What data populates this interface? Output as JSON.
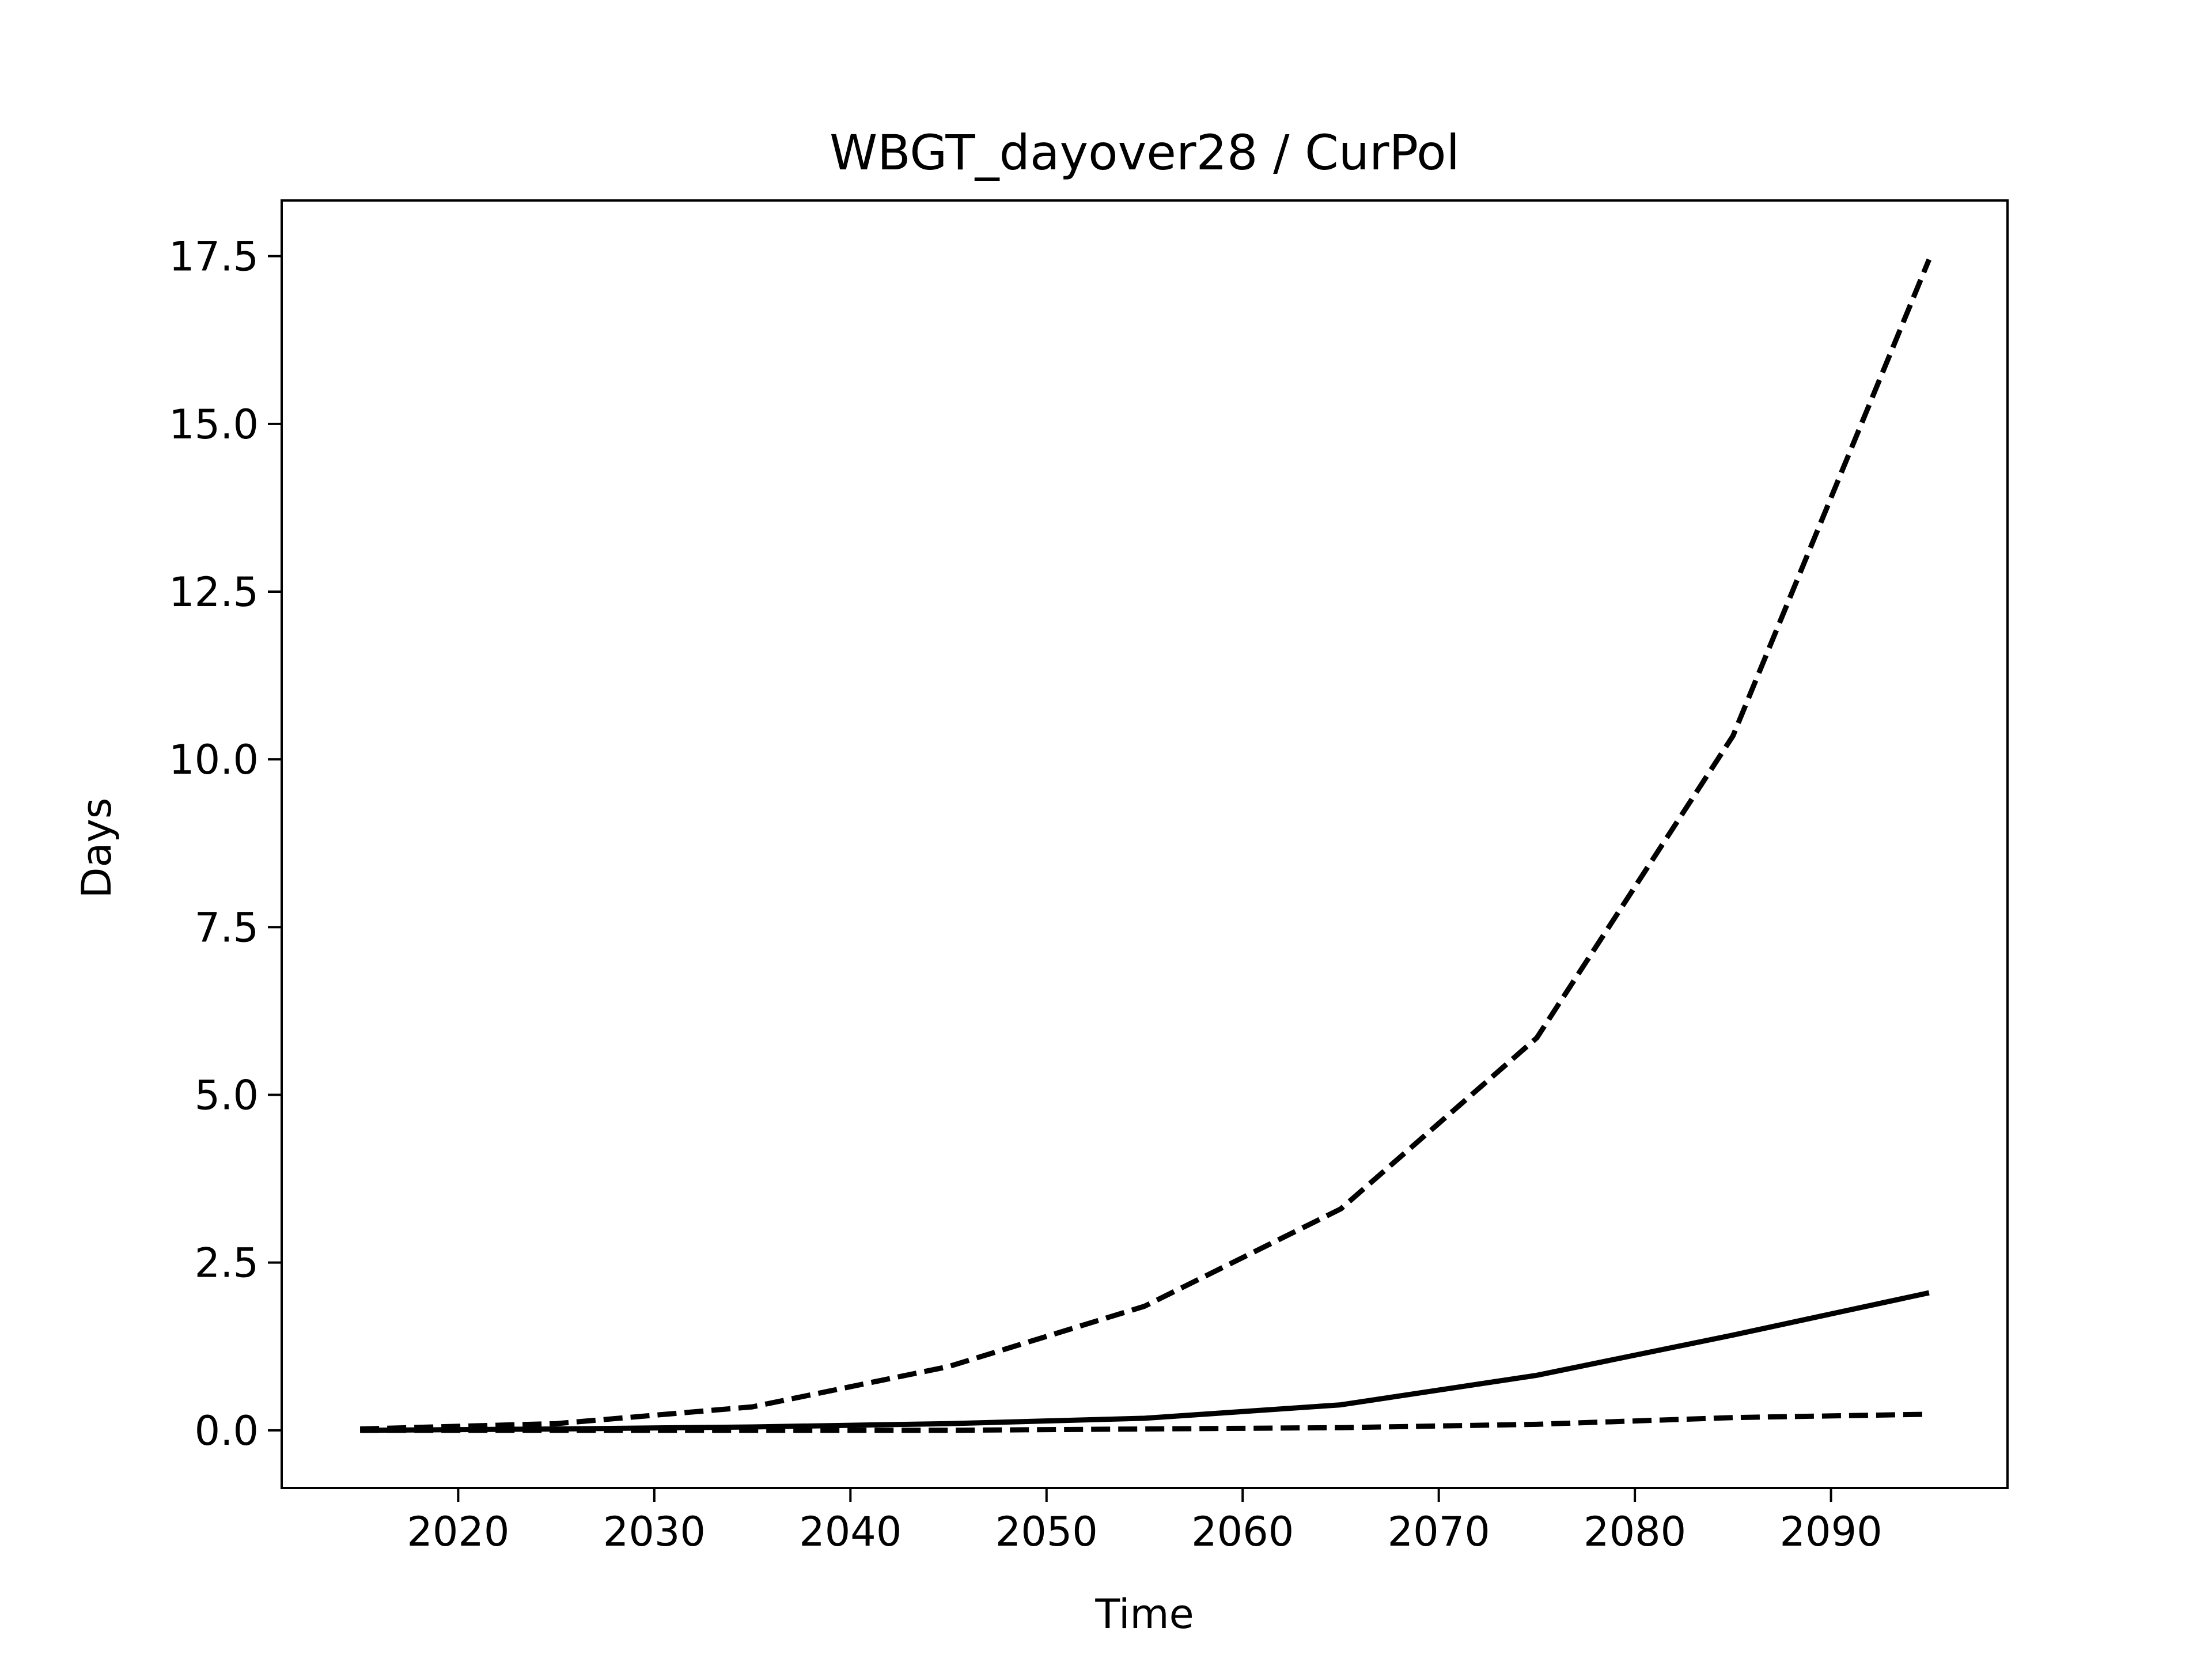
{
  "chart_data": {
    "type": "line",
    "title": "WBGT_dayover28 / CurPol",
    "xlabel": "Time",
    "ylabel": "Days",
    "x": [
      2015,
      2025,
      2035,
      2045,
      2055,
      2065,
      2075,
      2085,
      2095
    ],
    "series": [
      {
        "style": "dashed",
        "values": [
          0.02,
          0.1,
          0.35,
          0.95,
          1.85,
          3.3,
          5.85,
          10.35,
          17.45
        ]
      },
      {
        "style": "solid",
        "values": [
          0.0,
          0.02,
          0.05,
          0.1,
          0.18,
          0.38,
          0.82,
          1.42,
          2.05
        ]
      },
      {
        "style": "dashed",
        "values": [
          0.0,
          0.0,
          0.0,
          0.0,
          0.02,
          0.04,
          0.09,
          0.19,
          0.24
        ]
      }
    ],
    "xlim": [
      2011,
      2099
    ],
    "ylim": [
      -0.86,
      18.33
    ],
    "xticks": [
      2020,
      2030,
      2040,
      2050,
      2060,
      2070,
      2080,
      2090
    ],
    "yticks": [
      "0.0",
      "2.5",
      "5.0",
      "7.5",
      "10.0",
      "12.5",
      "15.0",
      "17.5"
    ],
    "line_color": "#000000",
    "grid": false,
    "legend": "none"
  }
}
